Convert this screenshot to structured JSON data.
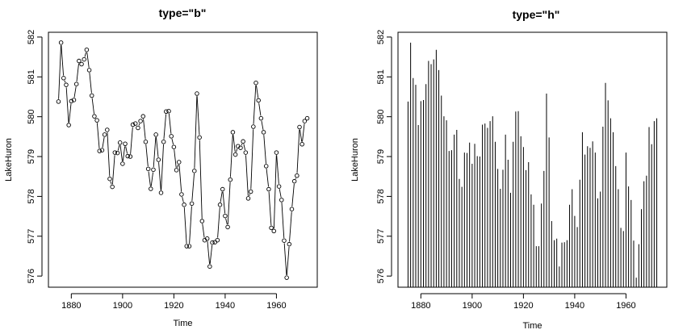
{
  "chart_data": [
    {
      "type": "line",
      "style": "points connected by gapped line segments",
      "title": "type=\"b\"",
      "xlabel": "Time",
      "ylabel": "LakeHuron",
      "x_ticks": [
        1880,
        1900,
        1920,
        1940,
        1960
      ],
      "y_ticks": [
        576,
        577,
        578,
        579,
        580,
        581,
        582
      ],
      "xlim": [
        1871.08,
        1975.92
      ],
      "ylim": [
        575.72,
        582.12
      ],
      "series_ref": "lake_huron"
    },
    {
      "type": "bar",
      "style": "histogram-like vertical lines",
      "title": "type=\"h\"",
      "xlabel": "Time",
      "ylabel": "LakeHuron",
      "x_ticks": [
        1880,
        1900,
        1920,
        1940,
        1960
      ],
      "y_ticks": [
        576,
        577,
        578,
        579,
        580,
        581,
        582
      ],
      "xlim": [
        1871.08,
        1975.92
      ],
      "ylim": [
        575.72,
        582.12
      ],
      "series_ref": "lake_huron"
    }
  ],
  "lake_huron": {
    "start_year": 1875,
    "values": [
      580.38,
      581.86,
      580.97,
      580.8,
      579.79,
      580.39,
      580.42,
      580.82,
      581.4,
      581.32,
      581.44,
      581.68,
      581.17,
      580.53,
      580.01,
      579.91,
      579.14,
      579.16,
      579.55,
      579.67,
      578.44,
      578.24,
      579.1,
      579.09,
      579.35,
      578.82,
      579.32,
      579.01,
      579.0,
      579.8,
      579.83,
      579.72,
      579.89,
      580.01,
      579.37,
      578.69,
      578.19,
      578.67,
      579.55,
      578.92,
      578.09,
      579.37,
      580.13,
      580.14,
      579.51,
      579.24,
      578.66,
      578.86,
      578.05,
      577.79,
      576.75,
      576.75,
      577.82,
      578.64,
      580.58,
      579.48,
      577.38,
      576.9,
      576.94,
      576.24,
      576.84,
      576.85,
      576.9,
      577.79,
      578.18,
      577.51,
      577.23,
      578.42,
      579.61,
      579.05,
      579.26,
      579.22,
      579.38,
      579.1,
      577.95,
      578.12,
      579.75,
      580.85,
      580.41,
      579.96,
      579.61,
      578.76,
      578.18,
      577.21,
      577.13,
      579.1,
      578.25,
      577.91,
      576.89,
      575.96,
      576.8,
      577.68,
      578.38,
      578.52,
      579.74,
      579.31,
      579.89,
      579.96
    ]
  }
}
